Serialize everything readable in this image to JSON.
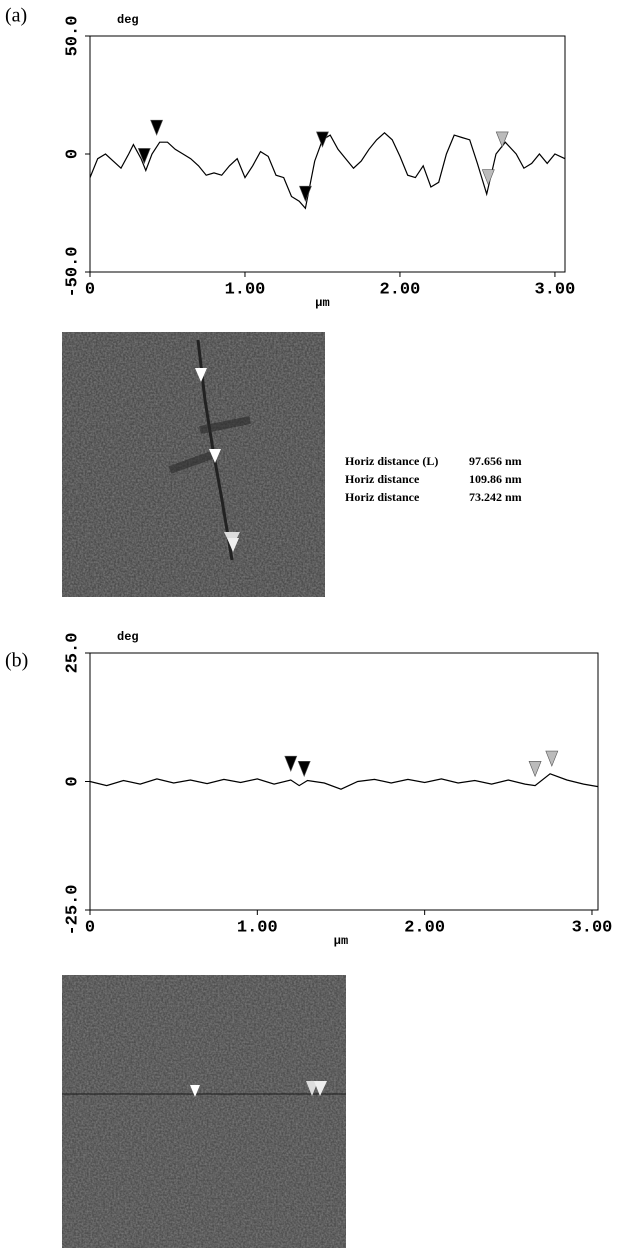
{
  "chart_data": [
    {
      "type": "line",
      "panel_label": "(a)",
      "y_unit": "deg",
      "x_label": "µm",
      "color": "#000000",
      "xlim": [
        0,
        3.065
      ],
      "ylim": [
        -50,
        50
      ],
      "xticks": [
        0,
        {
          "value": 1,
          "label": "1.00"
        },
        {
          "value": 2,
          "label": "2.00"
        },
        {
          "value": 3,
          "label": "3.00"
        }
      ],
      "yticks": [
        {
          "value": 50,
          "label": "50.0"
        },
        0,
        {
          "value": -50,
          "label": "-50.0"
        }
      ],
      "x": [
        0,
        0.05,
        0.1,
        0.15,
        0.2,
        0.25,
        0.28,
        0.33,
        0.36,
        0.4,
        0.45,
        0.5,
        0.55,
        0.6,
        0.65,
        0.7,
        0.75,
        0.8,
        0.85,
        0.9,
        0.95,
        1.0,
        1.05,
        1.1,
        1.15,
        1.2,
        1.25,
        1.3,
        1.35,
        1.39,
        1.45,
        1.5,
        1.55,
        1.6,
        1.65,
        1.7,
        1.75,
        1.8,
        1.85,
        1.9,
        1.95,
        2.0,
        2.05,
        2.1,
        2.15,
        2.2,
        2.25,
        2.3,
        2.35,
        2.4,
        2.45,
        2.5,
        2.56,
        2.62,
        2.68,
        2.75,
        2.8,
        2.85,
        2.9,
        2.95,
        3.0,
        3.065
      ],
      "values": [
        -10,
        -2,
        0,
        -3,
        -6,
        0,
        4,
        -2,
        -7,
        0,
        5,
        5,
        2,
        0,
        -2,
        -5,
        -9,
        -8,
        -9,
        -5,
        -2,
        -10,
        -5,
        1,
        -1,
        -9,
        -10,
        -18,
        -20,
        -23,
        -3,
        6,
        8,
        2,
        -2,
        -6,
        -3,
        2,
        6,
        9,
        6,
        -1,
        -9,
        -10,
        -5,
        -14,
        -12,
        0,
        8,
        7,
        6,
        -4,
        -17,
        0,
        5,
        0,
        -6,
        -4,
        0,
        -4,
        0,
        -2
      ],
      "cursors": [
        {
          "x": 0.35,
          "y": -4,
          "color": "#000000"
        },
        {
          "x": 0.43,
          "y": 8,
          "color": "#000000"
        },
        {
          "x": 1.39,
          "y": -20,
          "color": "#000000"
        },
        {
          "x": 1.5,
          "y": 3,
          "color": "#000000"
        },
        {
          "x": 2.57,
          "y": -13,
          "color": "#bbbbbb"
        },
        {
          "x": 2.66,
          "y": 3,
          "color": "#bbbbbb"
        }
      ],
      "measurements": [
        {
          "label": "Horiz distance (L)",
          "value": "97.656 nm"
        },
        {
          "label": "Horiz distance",
          "value": "109.86 nm"
        },
        {
          "label": "Horiz distance",
          "value": "73.242 nm"
        }
      ]
    },
    {
      "type": "line",
      "panel_label": "(b)",
      "y_unit": "deg",
      "x_label": "µm",
      "color": "#000000",
      "xlim": [
        0,
        3.036
      ],
      "ylim": [
        -25,
        25
      ],
      "xticks": [
        0,
        {
          "value": 1,
          "label": "1.00"
        },
        {
          "value": 2,
          "label": "2.00"
        },
        {
          "value": 3,
          "label": "3.00"
        }
      ],
      "yticks": [
        {
          "value": 25,
          "label": "25.0"
        },
        0,
        {
          "value": -25,
          "label": "-25.0"
        }
      ],
      "x": [
        0,
        0.1,
        0.2,
        0.3,
        0.4,
        0.5,
        0.6,
        0.7,
        0.8,
        0.9,
        1.0,
        1.1,
        1.2,
        1.25,
        1.3,
        1.4,
        1.5,
        1.6,
        1.7,
        1.8,
        1.9,
        2.0,
        2.1,
        2.2,
        2.3,
        2.4,
        2.5,
        2.6,
        2.66,
        2.75,
        2.85,
        2.95,
        3.036
      ],
      "values": [
        0,
        -0.8,
        0.2,
        -0.5,
        0.5,
        -0.3,
        0.3,
        -0.4,
        0.4,
        -0.2,
        0.5,
        -0.5,
        0.3,
        -0.8,
        0.2,
        -0.3,
        -1.5,
        0,
        0.4,
        -0.3,
        0.4,
        -0.2,
        0.5,
        -0.3,
        0.2,
        -0.5,
        0.3,
        -0.5,
        -0.8,
        1.5,
        0.3,
        -0.5,
        -1
      ],
      "cursors": [
        {
          "x": 1.2,
          "y": 2,
          "color": "#000000"
        },
        {
          "x": 1.28,
          "y": 1,
          "color": "#000000"
        },
        {
          "x": 2.66,
          "y": 1,
          "color": "#bbbbbb"
        },
        {
          "x": 2.76,
          "y": 3,
          "color": "#bbbbbb"
        }
      ]
    }
  ]
}
